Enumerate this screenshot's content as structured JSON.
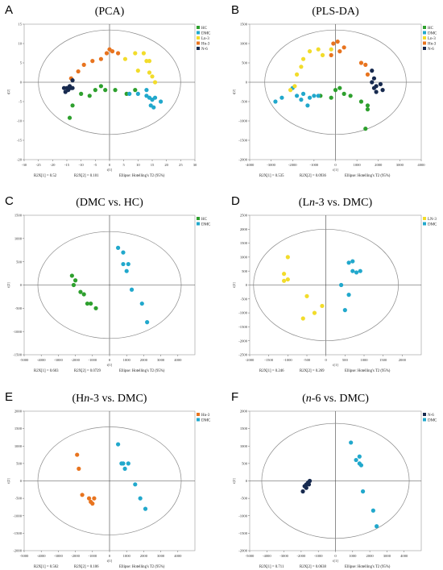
{
  "chart_data": [
    {
      "letter": "A",
      "title": "(PCA)",
      "type": "scatter",
      "xlabel": "t[1]",
      "ylabel": "t[2]",
      "xlim": [
        -30,
        30
      ],
      "ylim": [
        -20,
        15
      ],
      "xticks": [
        -30,
        -25,
        -20,
        -15,
        -10,
        -5,
        0,
        5,
        10,
        15,
        20,
        25,
        30
      ],
      "yticks": [
        -20,
        -15,
        -10,
        -5,
        0,
        5,
        10,
        15
      ],
      "ellipse": {
        "rx": 25,
        "ry": 13.5
      },
      "footer": [
        "R2X[1] = 0.52",
        "R2X[2] = 0.101",
        "Ellipse: Hotelling's T2 (95%)"
      ],
      "series": [
        {
          "name": "HC",
          "color": "#2ea02e",
          "points": [
            [
              -10,
              -3
            ],
            [
              -7,
              -3.5
            ],
            [
              -5,
              -2
            ],
            [
              -3,
              -1
            ],
            [
              -1.5,
              -2
            ],
            [
              2,
              -2
            ],
            [
              6,
              -3
            ],
            [
              9,
              -2
            ],
            [
              -13,
              -6
            ],
            [
              -14,
              -9.2
            ]
          ]
        },
        {
          "name": "DMC",
          "color": "#21a8cc",
          "points": [
            [
              10,
              -3
            ],
            [
              13,
              -2
            ],
            [
              14,
              -4
            ],
            [
              15,
              -4.5
            ],
            [
              16,
              -4
            ],
            [
              14.5,
              -6
            ],
            [
              15.5,
              -6.5
            ],
            [
              18,
              -5
            ],
            [
              7,
              -3
            ],
            [
              13,
              -3.5
            ]
          ]
        },
        {
          "name": "Ln-3",
          "color": "#f2dc2b",
          "points": [
            [
              9,
              7.5
            ],
            [
              12,
              7.5
            ],
            [
              13,
              5.5
            ],
            [
              14,
              5.5
            ],
            [
              10,
              3
            ],
            [
              14,
              2.5
            ],
            [
              15,
              1.5
            ],
            [
              16,
              0
            ],
            [
              5.5,
              6
            ]
          ]
        },
        {
          "name": "Hn-3",
          "color": "#e8741f",
          "points": [
            [
              -11,
              2.8
            ],
            [
              -9,
              4.5
            ],
            [
              -6,
              5.5
            ],
            [
              -3,
              6
            ],
            [
              -1,
              7.5
            ],
            [
              1,
              8
            ],
            [
              3,
              7.5
            ],
            [
              0,
              8.5
            ],
            [
              -13.5,
              1
            ]
          ]
        },
        {
          "name": "N-6",
          "color": "#172a4f",
          "points": [
            [
              -13,
              0.5
            ],
            [
              -13.5,
              -1.5
            ],
            [
              -15,
              -1.5
            ],
            [
              -15.5,
              -2.5
            ],
            [
              -14,
              -1
            ],
            [
              -14.5,
              -2
            ],
            [
              -16,
              -1.5
            ],
            [
              -13,
              -1.5
            ]
          ]
        }
      ]
    },
    {
      "letter": "B",
      "title": "(PLS-DA)",
      "type": "scatter",
      "xlabel": "t[1]",
      "ylabel": "t[2]",
      "xlim": [
        -4000,
        4000
      ],
      "ylim": [
        -2000,
        1500
      ],
      "xticks": [
        -4000,
        -3000,
        -2000,
        -1000,
        0,
        1000,
        2000,
        3000,
        4000
      ],
      "yticks": [
        -2000,
        -1500,
        -1000,
        -500,
        0,
        500,
        1000,
        1500
      ],
      "ellipse": {
        "rx": 3300,
        "ry": 1350
      },
      "footer": [
        "R2X[1] = 0.535",
        "R2X[2] = 0.0936",
        "Ellipse: Hotelling's T2 (95%)"
      ],
      "series": [
        {
          "name": "HC",
          "color": "#2ea02e",
          "points": [
            [
              -700,
              -350
            ],
            [
              -200,
              -400
            ],
            [
              0,
              -200
            ],
            [
              200,
              -150
            ],
            [
              400,
              -300
            ],
            [
              700,
              -350
            ],
            [
              1200,
              -500
            ],
            [
              1500,
              -600
            ],
            [
              1500,
              -700
            ],
            [
              1400,
              -1200
            ]
          ]
        },
        {
          "name": "DMC",
          "color": "#21a8cc",
          "points": [
            [
              -2800,
              -500
            ],
            [
              -2500,
              -400
            ],
            [
              -2000,
              -150
            ],
            [
              -1800,
              -350
            ],
            [
              -1500,
              -300
            ],
            [
              -1200,
              -400
            ],
            [
              -1000,
              -350
            ],
            [
              -1600,
              -450
            ],
            [
              -1300,
              -600
            ],
            [
              -800,
              -350
            ]
          ]
        },
        {
          "name": "Ln-3",
          "color": "#f2dc2b",
          "points": [
            [
              -1800,
              200
            ],
            [
              -1600,
              400
            ],
            [
              -1500,
              600
            ],
            [
              -1200,
              800
            ],
            [
              -800,
              850
            ],
            [
              -600,
              700
            ],
            [
              -200,
              850
            ],
            [
              -1900,
              -100
            ],
            [
              -2100,
              -200
            ]
          ]
        },
        {
          "name": "Hn-3",
          "color": "#e8741f",
          "points": [
            [
              -200,
              700
            ],
            [
              -100,
              1000
            ],
            [
              100,
              1050
            ],
            [
              400,
              900
            ],
            [
              1200,
              500
            ],
            [
              1400,
              450
            ],
            [
              1500,
              200
            ],
            [
              200,
              800
            ]
          ]
        },
        {
          "name": "N-6",
          "color": "#172a4f",
          "points": [
            [
              1700,
              300
            ],
            [
              1800,
              100
            ],
            [
              1700,
              0
            ],
            [
              1900,
              -100
            ],
            [
              2100,
              -50
            ],
            [
              1800,
              -150
            ],
            [
              2200,
              -200
            ],
            [
              1900,
              -250
            ]
          ]
        }
      ]
    },
    {
      "letter": "C",
      "title": "(DMC vs. HC)",
      "type": "scatter",
      "xlabel": "t[1]",
      "ylabel": "t[2]",
      "xlim": [
        -5000,
        5000
      ],
      "ylim": [
        -1500,
        1500
      ],
      "xticks": [
        -5000,
        -4000,
        -3000,
        -2000,
        -1000,
        0,
        1000,
        2000,
        3000,
        4000
      ],
      "yticks": [
        -1500,
        -1000,
        -500,
        0,
        500,
        1000,
        1500
      ],
      "ellipse": {
        "rx": 4200,
        "ry": 1150
      },
      "footer": [
        "R2X[1] = 0.603",
        "R2X[2] = 0.0729",
        "Ellipse: Hotelling's T2 (95%)"
      ],
      "series": [
        {
          "name": "HC",
          "color": "#2ea02e",
          "points": [
            [
              -2200,
              200
            ],
            [
              -2000,
              100
            ],
            [
              -2100,
              0
            ],
            [
              -1700,
              -150
            ],
            [
              -1500,
              -200
            ],
            [
              -1300,
              -400
            ],
            [
              -1100,
              -400
            ],
            [
              -800,
              -500
            ]
          ]
        },
        {
          "name": "DMC",
          "color": "#21a8cc",
          "points": [
            [
              500,
              800
            ],
            [
              800,
              700
            ],
            [
              800,
              450
            ],
            [
              1100,
              450
            ],
            [
              1000,
              300
            ],
            [
              1300,
              -100
            ],
            [
              1900,
              -400
            ],
            [
              2200,
              -800
            ]
          ]
        }
      ]
    },
    {
      "letter": "D",
      "title": "(Ln-3 vs. DMC)",
      "titleParts": [
        "(L",
        "n",
        "-3 vs. DMC)"
      ],
      "type": "scatter",
      "xlabel": "t[1]",
      "ylabel": "t[2]",
      "xlim": [
        -2000,
        2500
      ],
      "ylim": [
        -2500,
        2500
      ],
      "xticks": [
        -2000,
        -1500,
        -1000,
        -500,
        0,
        500,
        1000,
        1500,
        2000
      ],
      "yticks": [
        -2500,
        -2000,
        -1500,
        -1000,
        -500,
        0,
        500,
        1000,
        1500,
        2000,
        2500
      ],
      "ellipse": {
        "rx": 1900,
        "ry": 2000
      },
      "footer": [
        "R2X[1] = 0.246",
        "R2X[2] = 0.269",
        "Ellipse: Hotelling's T2 (95%)"
      ],
      "series": [
        {
          "name": "LN-3",
          "color": "#f2dc2b",
          "points": [
            [
              -1000,
              1000
            ],
            [
              -1100,
              400
            ],
            [
              -1100,
              150
            ],
            [
              -1000,
              200
            ],
            [
              -500,
              -400
            ],
            [
              -100,
              -750
            ],
            [
              -600,
              -1200
            ],
            [
              -300,
              -1000
            ]
          ]
        },
        {
          "name": "DMC",
          "color": "#21a8cc",
          "points": [
            [
              600,
              800
            ],
            [
              700,
              850
            ],
            [
              700,
              500
            ],
            [
              800,
              450
            ],
            [
              900,
              500
            ],
            [
              400,
              0
            ],
            [
              600,
              -350
            ],
            [
              500,
              -900
            ]
          ]
        }
      ]
    },
    {
      "letter": "E",
      "title": "(Hn-3 vs. DMC)",
      "titleParts": [
        "(H",
        "n",
        "-3 vs. DMC)"
      ],
      "type": "scatter",
      "xlabel": "t[1]",
      "ylabel": "t[2]",
      "xlim": [
        -5000,
        5000
      ],
      "ylim": [
        -2000,
        2000
      ],
      "xticks": [
        -5000,
        -4000,
        -3000,
        -2000,
        -1000,
        0,
        1000,
        2000,
        3000,
        4000
      ],
      "yticks": [
        -2000,
        -1500,
        -1000,
        -500,
        0,
        500,
        1000,
        1500,
        2000
      ],
      "ellipse": {
        "rx": 4200,
        "ry": 1550
      },
      "footer": [
        "R2X[1] = 0.562",
        "R2X[2] = 0.106",
        "Ellipse: Hotelling's T2 (95%)"
      ],
      "series": [
        {
          "name": "Hn-3",
          "color": "#e8741f",
          "points": [
            [
              -1900,
              750
            ],
            [
              -1800,
              350
            ],
            [
              -1600,
              -400
            ],
            [
              -1200,
              -500
            ],
            [
              -1100,
              -600
            ],
            [
              -900,
              -500
            ],
            [
              -1000,
              -650
            ]
          ]
        },
        {
          "name": "DMC",
          "color": "#21a8cc",
          "points": [
            [
              500,
              1050
            ],
            [
              800,
              500
            ],
            [
              900,
              350
            ],
            [
              1100,
              500
            ],
            [
              1500,
              -100
            ],
            [
              1800,
              -500
            ],
            [
              2100,
              -800
            ],
            [
              700,
              500
            ]
          ]
        }
      ]
    },
    {
      "letter": "F",
      "title": "(n-6 vs. DMC)",
      "titleParts": [
        "(",
        "n",
        "-6 vs. DMC)"
      ],
      "type": "scatter",
      "xlabel": "t[1]",
      "ylabel": "t[2]",
      "xlim": [
        -5000,
        5000
      ],
      "ylim": [
        -2000,
        2000
      ],
      "xticks": [
        -5000,
        -4000,
        -3000,
        -2000,
        -1000,
        0,
        1000,
        2000,
        3000,
        4000
      ],
      "yticks": [
        -2000,
        -1500,
        -1000,
        -500,
        0,
        500,
        1000,
        1500,
        2000
      ],
      "ellipse": {
        "rx": 4300,
        "ry": 1650
      },
      "footer": [
        "R2X[1] = 0.711",
        "R2X[2] = 0.0638",
        "Ellipse: Hotelling's T2 (95%)"
      ],
      "series": [
        {
          "name": "N-6",
          "color": "#172a4f",
          "points": [
            [
              -1900,
              -300
            ],
            [
              -1800,
              -150
            ],
            [
              -1700,
              -100
            ],
            [
              -1600,
              -50
            ],
            [
              -1500,
              0
            ],
            [
              -1700,
              -200
            ],
            [
              -1550,
              -100
            ]
          ]
        },
        {
          "name": "DMC",
          "color": "#21a8cc",
          "points": [
            [
              900,
              1100
            ],
            [
              1200,
              600
            ],
            [
              1400,
              700
            ],
            [
              1500,
              450
            ],
            [
              1400,
              500
            ],
            [
              1600,
              -300
            ],
            [
              2200,
              -850
            ],
            [
              2400,
              -1300
            ]
          ]
        }
      ]
    }
  ]
}
